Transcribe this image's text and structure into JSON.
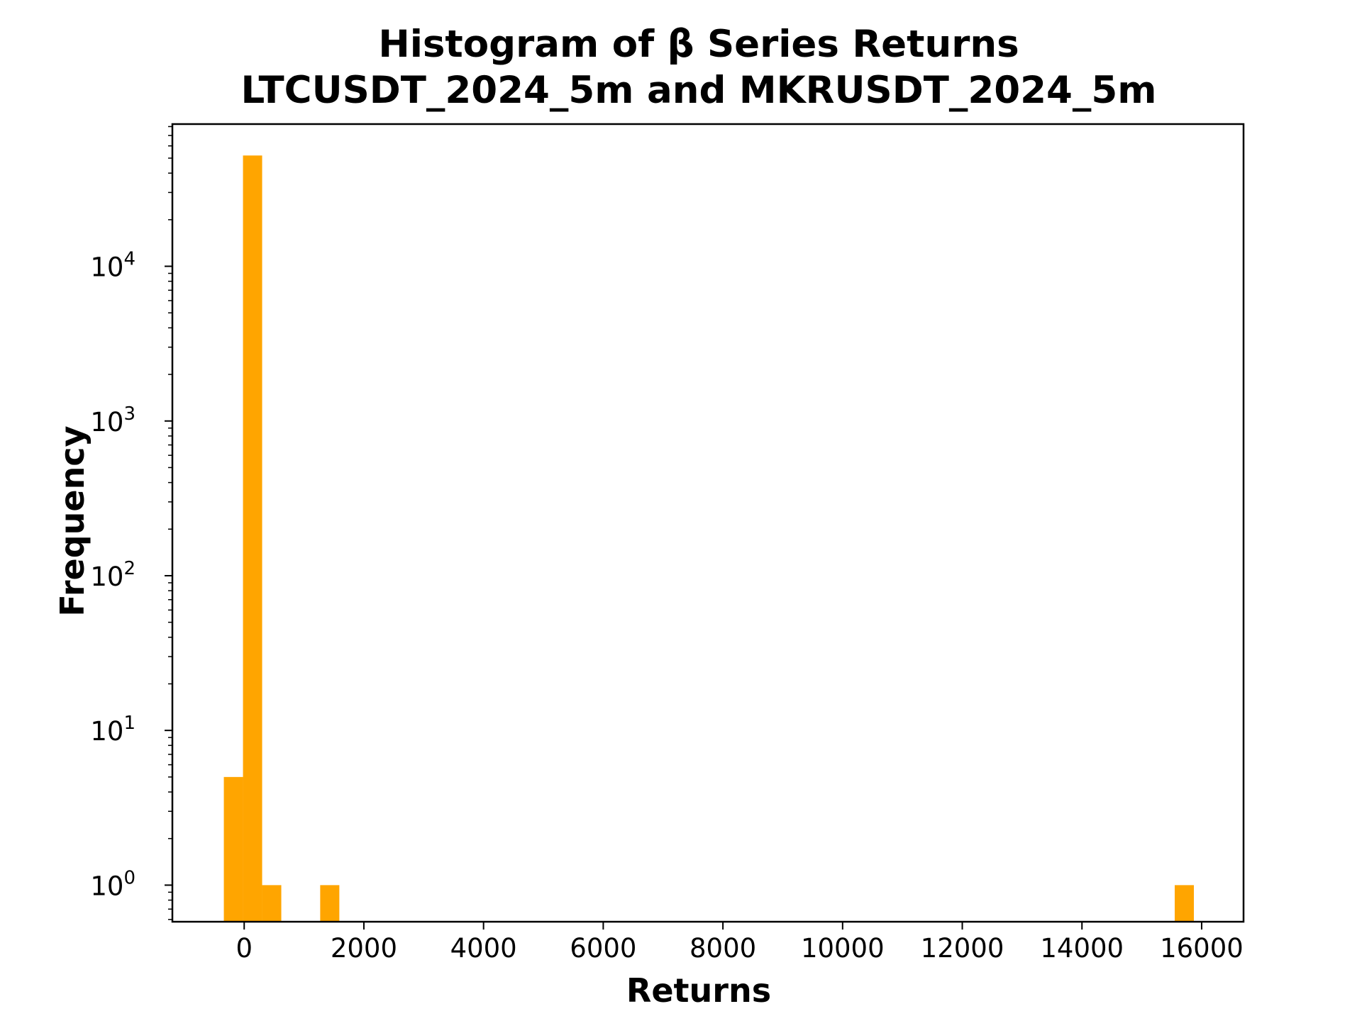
{
  "chart_data": {
    "type": "bar",
    "title": "Histogram of β Series Returns",
    "subtitle": "LTCUSDT_2024_5m and MKRUSDT_2024_5m",
    "xlabel": "Returns",
    "ylabel": "Frequency",
    "yscale": "log",
    "bar_color": "#FFA500",
    "xlim": [
      -1200,
      16700
    ],
    "ylim": [
      0.58,
      83000
    ],
    "x_ticks": [
      0,
      2000,
      4000,
      6000,
      8000,
      10000,
      12000,
      14000,
      16000
    ],
    "x_tick_labels": [
      "0",
      "2000",
      "4000",
      "6000",
      "8000",
      "10000",
      "12000",
      "14000",
      "16000"
    ],
    "y_ticks": [
      {
        "base": "10",
        "exp": "0",
        "value": 1
      },
      {
        "base": "10",
        "exp": "1",
        "value": 10
      },
      {
        "base": "10",
        "exp": "2",
        "value": 100
      },
      {
        "base": "10",
        "exp": "3",
        "value": 1000
      },
      {
        "base": "10",
        "exp": "4",
        "value": 10000
      }
    ],
    "bins": [
      {
        "x0": -340,
        "x1": -20,
        "count": 5
      },
      {
        "x0": -20,
        "x1": 300,
        "count": 52000
      },
      {
        "x0": 300,
        "x1": 620,
        "count": 1
      },
      {
        "x0": 1270,
        "x1": 1590,
        "count": 1
      },
      {
        "x0": 15550,
        "x1": 15870,
        "count": 1
      }
    ],
    "grid": false,
    "legend": "none"
  }
}
